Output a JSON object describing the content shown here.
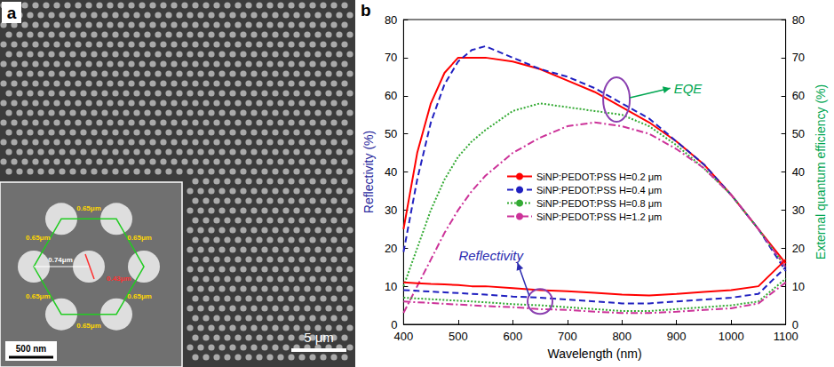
{
  "panel_a": {
    "label": "a",
    "scale_bar": "5 μm",
    "inset": {
      "scale_bar": "500 nm",
      "labels": [
        {
          "text": "0.65μm",
          "color": "#ffd700"
        },
        {
          "text": "0.65μm",
          "color": "#ffd700"
        },
        {
          "text": "0.65μm",
          "color": "#ffd700"
        },
        {
          "text": "0.65μm",
          "color": "#ffd700"
        },
        {
          "text": "0.65μm",
          "color": "#ffd700"
        },
        {
          "text": "0.65μm",
          "color": "#ffd700"
        },
        {
          "text": "0.74μm",
          "color": "#ffffff"
        },
        {
          "text": "0.43μm",
          "color": "#ff3030"
        }
      ]
    }
  },
  "panel_b_label": "b",
  "chart_data": {
    "type": "line",
    "xlabel": "Wavelength (nm)",
    "ylabel": "Reflectivity (%)",
    "y2label": "External quantum efficiency (%)",
    "x": [
      400,
      425,
      450,
      475,
      500,
      525,
      550,
      600,
      650,
      700,
      750,
      800,
      850,
      900,
      950,
      1000,
      1050,
      1100
    ],
    "xlim": [
      400,
      1100
    ],
    "xticks": [
      400,
      500,
      600,
      700,
      800,
      900,
      1000,
      1100
    ],
    "ylim": [
      0,
      80
    ],
    "yticks": [
      0,
      10,
      20,
      30,
      40,
      50,
      60,
      70,
      80
    ],
    "y2lim": [
      0,
      80
    ],
    "y2ticks": [
      0,
      10,
      20,
      30,
      40,
      50,
      60,
      70,
      80
    ],
    "grid": false,
    "legend": "center",
    "annotations": [
      {
        "text": "EQE",
        "color": "#00a651"
      },
      {
        "text": "Reflectivity",
        "color": "#2b2bb0"
      }
    ],
    "series": [
      {
        "name": "SiNP:PEDOT:PSS H=0.2 μm",
        "color": "#ff0000",
        "line_style": "solid",
        "axis": "y2",
        "values": [
          25,
          45,
          58,
          66,
          70,
          70,
          70,
          69,
          67,
          64,
          61,
          57,
          53,
          48,
          42,
          34,
          25,
          16
        ]
      },
      {
        "name": "SiNP:PEDOT:PSS H=0.4 μm",
        "color": "#2020c0",
        "line_style": "dashed",
        "axis": "y2",
        "values": [
          19,
          38,
          53,
          63,
          69,
          72,
          73,
          70,
          67,
          65,
          62,
          58,
          54,
          48,
          42,
          34,
          25,
          14
        ]
      },
      {
        "name": "SiNP:PEDOT:PSS H=0.8 μm",
        "color": "#33aa33",
        "line_style": "dotted",
        "axis": "y2",
        "values": [
          10,
          20,
          30,
          38,
          44,
          48,
          51,
          56,
          58,
          57,
          56,
          55,
          52,
          47,
          41,
          34,
          25,
          15
        ]
      },
      {
        "name": "SiNP:PEDOT:PSS H=1.2 μm",
        "color": "#cc3399",
        "line_style": "dashdot",
        "axis": "y2",
        "values": [
          3,
          10,
          17,
          24,
          30,
          35,
          39,
          45,
          49,
          52,
          53,
          52,
          50,
          46,
          41,
          34,
          25,
          15
        ]
      },
      {
        "name": "SiNP:PEDOT:PSS H=0.2 μm",
        "color": "#ff0000",
        "line_style": "solid",
        "axis": "y",
        "values": [
          11,
          10.8,
          10.6,
          10.5,
          10.3,
          10,
          10,
          9.5,
          9,
          8.7,
          8.3,
          7.8,
          7.6,
          8,
          8.5,
          9,
          10,
          17
        ]
      },
      {
        "name": "SiNP:PEDOT:PSS H=0.4 μm",
        "color": "#2020c0",
        "line_style": "dashed",
        "axis": "y",
        "values": [
          9,
          8.8,
          8.6,
          8.4,
          8.2,
          8,
          7.8,
          7.3,
          7,
          6.5,
          6,
          5.5,
          5.5,
          6,
          6.5,
          7,
          8,
          15
        ]
      },
      {
        "name": "SiNP:PEDOT:PSS H=0.8 μm",
        "color": "#33aa33",
        "line_style": "dotted",
        "axis": "y",
        "values": [
          7,
          6.8,
          6.6,
          6.4,
          6.2,
          6,
          5.8,
          5.3,
          5,
          4.5,
          4,
          3.5,
          3.5,
          4,
          4.5,
          5,
          6,
          12
        ]
      },
      {
        "name": "SiNP:PEDOT:PSS H=1.2 μm",
        "color": "#cc3399",
        "line_style": "dashdot",
        "axis": "y",
        "values": [
          6,
          5.8,
          5.6,
          5.4,
          5.2,
          5,
          4.8,
          4.5,
          4,
          3.8,
          3.3,
          3,
          3,
          3.3,
          3.8,
          4.2,
          5.5,
          11
        ]
      }
    ]
  }
}
